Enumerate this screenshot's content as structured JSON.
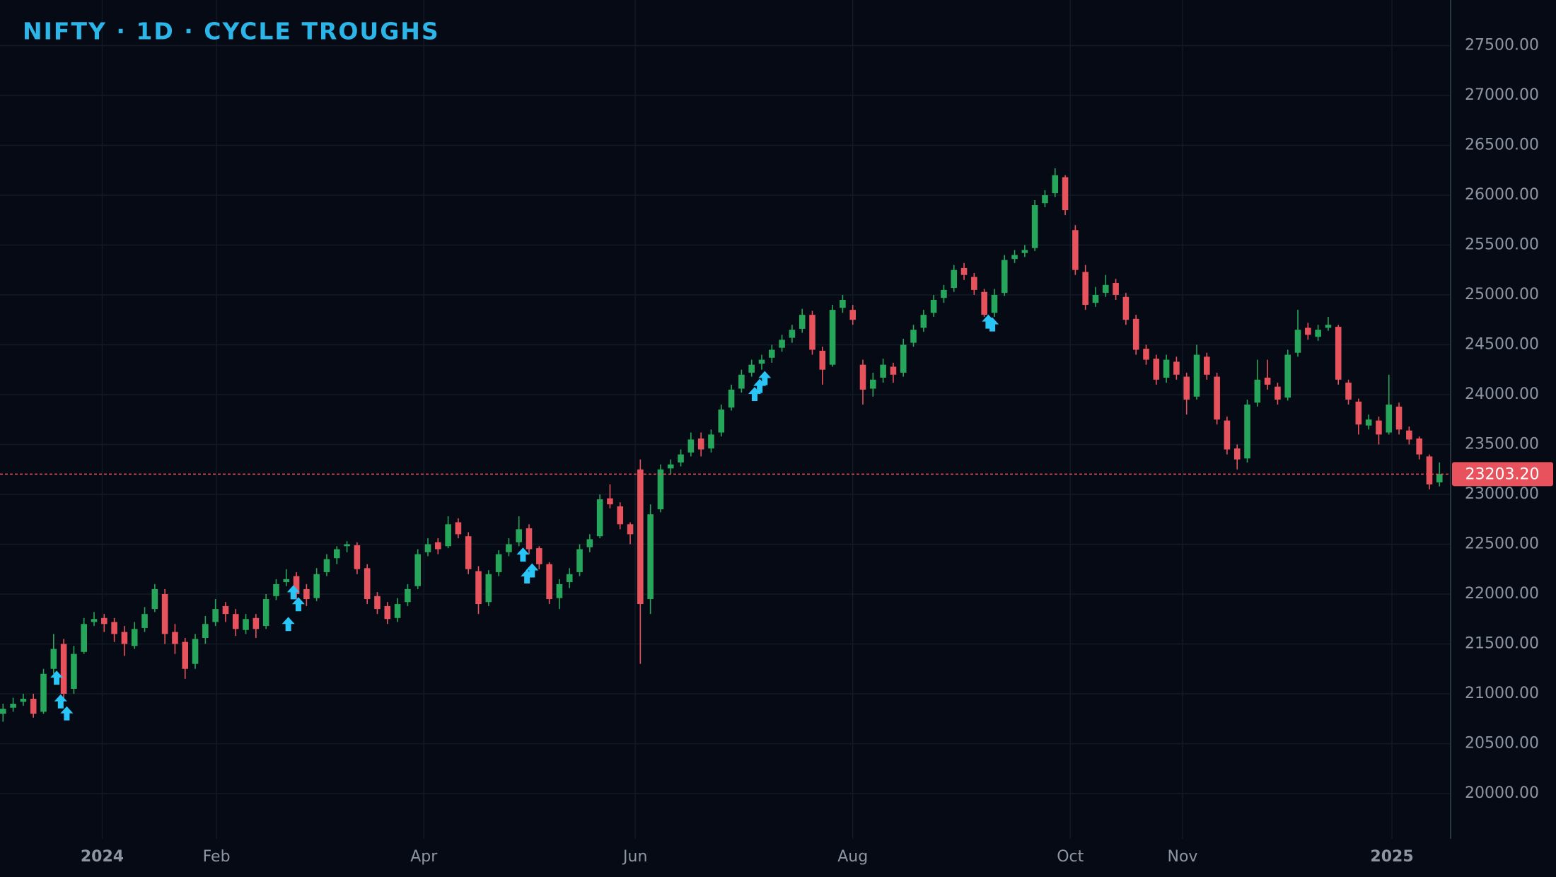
{
  "chart_data": {
    "type": "candlestick",
    "title": "NIFTY · 1D · CYCLE TROUGHS",
    "up_color": "#26a65b",
    "down_color": "#e8525c",
    "signal_color": "#29c5f6",
    "grid": true,
    "ylim": [
      19546,
      27957
    ],
    "yticks": [
      {
        "value": 20000,
        "label": "20000.00"
      },
      {
        "value": 20500,
        "label": "20500.00"
      },
      {
        "value": 21000,
        "label": "21000.00"
      },
      {
        "value": 21500,
        "label": "21500.00"
      },
      {
        "value": 22000,
        "label": "22000.00"
      },
      {
        "value": 22500,
        "label": "22500.00"
      },
      {
        "value": 23000,
        "label": "23000.00"
      },
      {
        "value": 23500,
        "label": "23500.00"
      },
      {
        "value": 24000,
        "label": "24000.00"
      },
      {
        "value": 24500,
        "label": "24500.00"
      },
      {
        "value": 25000,
        "label": "25000.00"
      },
      {
        "value": 25500,
        "label": "25500.00"
      },
      {
        "value": 26000,
        "label": "26000.00"
      },
      {
        "value": 26500,
        "label": "26500.00"
      },
      {
        "value": 27000,
        "label": "27000.00"
      },
      {
        "value": 27500,
        "label": "27500.00"
      }
    ],
    "xlim": [
      -0.3,
      143.1
    ],
    "xticks": [
      {
        "value": 9.8,
        "label": "2024"
      },
      {
        "value": 21.1,
        "label": "Feb"
      },
      {
        "value": 41.6,
        "label": "Apr"
      },
      {
        "value": 62.5,
        "label": "Jun"
      },
      {
        "value": 84.0,
        "label": "Aug"
      },
      {
        "value": 105.5,
        "label": "Oct"
      },
      {
        "value": 116.6,
        "label": "Nov"
      },
      {
        "value": 137.3,
        "label": "2025"
      }
    ],
    "last_price": {
      "value": 23203.2,
      "label": "23203.20"
    },
    "candles": [
      [
        20800,
        20900,
        20720,
        20850
      ],
      [
        20860,
        20960,
        20820,
        20900
      ],
      [
        20920,
        21000,
        20880,
        20950
      ],
      [
        20950,
        21000,
        20760,
        20800
      ],
      [
        20820,
        21250,
        20800,
        21200
      ],
      [
        21250,
        21600,
        21200,
        21450
      ],
      [
        21500,
        21550,
        20950,
        21000
      ],
      [
        21050,
        21480,
        21000,
        21400
      ],
      [
        21420,
        21760,
        21400,
        21700
      ],
      [
        21720,
        21820,
        21680,
        21750
      ],
      [
        21760,
        21800,
        21620,
        21700
      ],
      [
        21720,
        21760,
        21520,
        21600
      ],
      [
        21620,
        21680,
        21380,
        21500
      ],
      [
        21480,
        21720,
        21450,
        21650
      ],
      [
        21660,
        21870,
        21620,
        21800
      ],
      [
        21850,
        22100,
        21820,
        22050
      ],
      [
        22000,
        22050,
        21500,
        21600
      ],
      [
        21620,
        21700,
        21400,
        21500
      ],
      [
        21520,
        21560,
        21150,
        21250
      ],
      [
        21300,
        21600,
        21250,
        21550
      ],
      [
        21560,
        21780,
        21500,
        21700
      ],
      [
        21720,
        21950,
        21680,
        21850
      ],
      [
        21880,
        21920,
        21720,
        21800
      ],
      [
        21800,
        21850,
        21580,
        21650
      ],
      [
        21640,
        21800,
        21600,
        21750
      ],
      [
        21760,
        21800,
        21560,
        21650
      ],
      [
        21680,
        22000,
        21650,
        21950
      ],
      [
        21980,
        22150,
        21940,
        22100
      ],
      [
        22120,
        22250,
        22080,
        22150
      ],
      [
        22180,
        22220,
        21950,
        22000
      ],
      [
        22050,
        22100,
        21880,
        21950
      ],
      [
        21960,
        22260,
        21930,
        22200
      ],
      [
        22220,
        22400,
        22180,
        22350
      ],
      [
        22360,
        22480,
        22300,
        22450
      ],
      [
        22480,
        22530,
        22420,
        22500
      ],
      [
        22490,
        22520,
        22200,
        22250
      ],
      [
        22260,
        22300,
        21900,
        21950
      ],
      [
        21980,
        22020,
        21800,
        21850
      ],
      [
        21880,
        21920,
        21700,
        21750
      ],
      [
        21760,
        21960,
        21720,
        21900
      ],
      [
        21920,
        22100,
        21880,
        22050
      ],
      [
        22080,
        22450,
        22050,
        22400
      ],
      [
        22420,
        22560,
        22380,
        22500
      ],
      [
        22520,
        22560,
        22400,
        22450
      ],
      [
        22480,
        22780,
        22460,
        22700
      ],
      [
        22720,
        22760,
        22560,
        22600
      ],
      [
        22580,
        22620,
        22200,
        22250
      ],
      [
        22230,
        22280,
        21800,
        21900
      ],
      [
        21920,
        22240,
        21880,
        22200
      ],
      [
        22220,
        22440,
        22180,
        22400
      ],
      [
        22420,
        22560,
        22380,
        22500
      ],
      [
        22520,
        22780,
        22480,
        22650
      ],
      [
        22660,
        22700,
        22400,
        22450
      ],
      [
        22460,
        22480,
        22250,
        22300
      ],
      [
        22300,
        22320,
        21900,
        21950
      ],
      [
        21960,
        22150,
        21850,
        22100
      ],
      [
        22120,
        22260,
        22060,
        22200
      ],
      [
        22220,
        22500,
        22180,
        22450
      ],
      [
        22470,
        22600,
        22420,
        22550
      ],
      [
        22580,
        23000,
        22560,
        22950
      ],
      [
        22960,
        23100,
        22860,
        22900
      ],
      [
        22880,
        22920,
        22650,
        22700
      ],
      [
        22700,
        22720,
        22500,
        22600
      ],
      [
        23250,
        23350,
        21300,
        21900
      ],
      [
        21950,
        22900,
        21800,
        22800
      ],
      [
        22850,
        23300,
        22820,
        23250
      ],
      [
        23260,
        23350,
        23200,
        23300
      ],
      [
        23320,
        23450,
        23280,
        23400
      ],
      [
        23420,
        23620,
        23380,
        23550
      ],
      [
        23560,
        23620,
        23380,
        23450
      ],
      [
        23460,
        23650,
        23420,
        23600
      ],
      [
        23620,
        23900,
        23580,
        23850
      ],
      [
        23870,
        24100,
        23840,
        24050
      ],
      [
        24060,
        24250,
        24020,
        24200
      ],
      [
        24220,
        24350,
        24180,
        24300
      ],
      [
        24310,
        24400,
        24250,
        24350
      ],
      [
        24370,
        24500,
        24320,
        24450
      ],
      [
        24470,
        24600,
        24430,
        24550
      ],
      [
        24570,
        24700,
        24520,
        24650
      ],
      [
        24660,
        24860,
        24620,
        24800
      ],
      [
        24800,
        24840,
        24400,
        24450
      ],
      [
        24440,
        24480,
        24100,
        24250
      ],
      [
        24300,
        24900,
        24280,
        24850
      ],
      [
        24870,
        25000,
        24820,
        24950
      ],
      [
        24850,
        24900,
        24700,
        24750
      ],
      [
        24300,
        24350,
        23900,
        24050
      ],
      [
        24060,
        24220,
        23980,
        24150
      ],
      [
        24170,
        24360,
        24120,
        24300
      ],
      [
        24280,
        24320,
        24120,
        24200
      ],
      [
        24220,
        24560,
        24180,
        24500
      ],
      [
        24520,
        24700,
        24480,
        24650
      ],
      [
        24670,
        24850,
        24630,
        24800
      ],
      [
        24820,
        25000,
        24780,
        24950
      ],
      [
        24970,
        25100,
        24920,
        25050
      ],
      [
        25070,
        25300,
        25030,
        25250
      ],
      [
        25270,
        25320,
        25150,
        25200
      ],
      [
        25180,
        25220,
        25000,
        25050
      ],
      [
        25030,
        25060,
        24780,
        24800
      ],
      [
        24820,
        25060,
        24780,
        25000
      ],
      [
        25020,
        25400,
        24990,
        25350
      ],
      [
        25360,
        25450,
        25320,
        25400
      ],
      [
        25420,
        25500,
        25380,
        25450
      ],
      [
        25470,
        25950,
        25440,
        25900
      ],
      [
        25920,
        26050,
        25880,
        26000
      ],
      [
        26020,
        26270,
        25980,
        26200
      ],
      [
        26180,
        26200,
        25800,
        25850
      ],
      [
        25650,
        25700,
        25200,
        25250
      ],
      [
        25230,
        25300,
        24850,
        24900
      ],
      [
        24920,
        25080,
        24880,
        25000
      ],
      [
        25020,
        25200,
        24980,
        25100
      ],
      [
        25120,
        25160,
        24950,
        25000
      ],
      [
        24980,
        25020,
        24700,
        24750
      ],
      [
        24760,
        24800,
        24400,
        24450
      ],
      [
        24460,
        24500,
        24300,
        24350
      ],
      [
        24360,
        24400,
        24100,
        24150
      ],
      [
        24170,
        24400,
        24120,
        24350
      ],
      [
        24330,
        24380,
        24150,
        24200
      ],
      [
        24180,
        24220,
        23800,
        23950
      ],
      [
        23980,
        24500,
        23950,
        24400
      ],
      [
        24380,
        24420,
        24150,
        24200
      ],
      [
        24180,
        24220,
        23700,
        23750
      ],
      [
        23740,
        23780,
        23400,
        23450
      ],
      [
        23460,
        23500,
        23250,
        23350
      ],
      [
        23360,
        23950,
        23320,
        23900
      ],
      [
        23920,
        24350,
        23880,
        24150
      ],
      [
        24170,
        24350,
        24050,
        24100
      ],
      [
        24080,
        24120,
        23900,
        23950
      ],
      [
        23970,
        24450,
        23940,
        24400
      ],
      [
        24420,
        24850,
        24380,
        24650
      ],
      [
        24670,
        24720,
        24550,
        24600
      ],
      [
        24580,
        24700,
        24540,
        24650
      ],
      [
        24670,
        24780,
        24640,
        24700
      ],
      [
        24680,
        24700,
        24100,
        24150
      ],
      [
        24120,
        24150,
        23900,
        23950
      ],
      [
        23930,
        23960,
        23600,
        23700
      ],
      [
        23690,
        23800,
        23650,
        23750
      ],
      [
        23740,
        23780,
        23500,
        23600
      ],
      [
        23620,
        24200,
        23600,
        23900
      ],
      [
        23880,
        23920,
        23600,
        23650
      ],
      [
        23640,
        23680,
        23500,
        23550
      ],
      [
        23560,
        23580,
        23350,
        23400
      ],
      [
        23380,
        23400,
        23050,
        23100
      ],
      [
        23120,
        23320,
        23080,
        23203.2
      ]
    ],
    "signals": {
      "x": [
        5.3,
        5.7,
        6.3,
        28.2,
        28.7,
        29.2,
        51.4,
        51.8,
        52.3,
        74.3,
        74.8,
        75.3,
        97.4,
        97.8
      ],
      "y": [
        21233,
        20995,
        20875,
        21771,
        22089,
        21970,
        22467,
        22248,
        22308,
        24078,
        24158,
        24237,
        24804,
        24775
      ]
    }
  }
}
